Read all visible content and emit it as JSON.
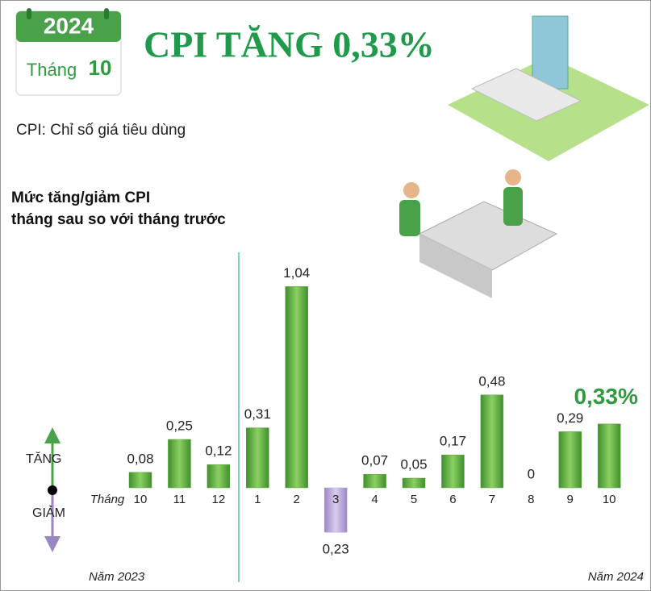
{
  "chart_data": {
    "type": "bar",
    "calendar": {
      "year": "2024",
      "month_label": "Tháng",
      "month": "10"
    },
    "title": "CPI TĂNG 0,33%",
    "subtitle": "CPI: Chỉ số giá tiêu dùng",
    "chart_title": [
      "Mức tăng/giảm CPI",
      "tháng sau so với tháng trước"
    ],
    "x_label": "Tháng",
    "up_label": "TĂNG",
    "down_label": "GIẢM",
    "year_labels": [
      "Năm 2023",
      "Năm 2024"
    ],
    "categories": [
      "10",
      "11",
      "12",
      "1",
      "2",
      "3",
      "4",
      "5",
      "6",
      "7",
      "8",
      "9",
      "10"
    ],
    "values": [
      0.08,
      0.25,
      0.12,
      0.31,
      1.04,
      -0.23,
      0.07,
      0.05,
      0.17,
      0.48,
      0,
      0.29,
      0.33
    ],
    "value_labels": [
      "0,08",
      "0,25",
      "0,12",
      "0,31",
      "1,04",
      "0,23",
      "0,07",
      "0,05",
      "0,17",
      "0,48",
      "0",
      "0,29",
      "0,33%"
    ],
    "color": "#5aa83c",
    "negative_color": "#b8a8d8",
    "highlight": 12
  }
}
